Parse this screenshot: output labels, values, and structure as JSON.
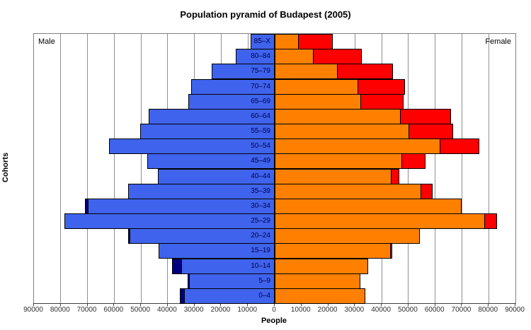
{
  "title": "Population pyramid of Budapest (2005)",
  "side_labels": {
    "left": "Male",
    "right": "Female"
  },
  "axes": {
    "xlabel": "People",
    "ylabel": "Cohorts",
    "x_max_each_side": 90000,
    "x_tick_step": 10000,
    "tick_labels": [
      "90000",
      "80000",
      "70000",
      "60000",
      "50000",
      "40000",
      "30000",
      "20000",
      "10000",
      "0",
      "10000",
      "20000",
      "30000",
      "40000",
      "50000",
      "60000",
      "70000",
      "80000",
      "90000"
    ]
  },
  "colors": {
    "male_bar": "#3F63EC",
    "male_surplus": "#000080",
    "female_bar": "#FF8000",
    "female_surplus": "#FF0000",
    "grid": "#909090",
    "plot_border": "#808080",
    "cohort_label_text": "#00004B"
  },
  "chart_data": {
    "type": "bar",
    "variant": "population-pyramid",
    "title": "Population pyramid of Budapest (2005)",
    "xlabel": "People",
    "ylabel": "Cohorts",
    "grid": true,
    "xlim_each_side": [
      0,
      90000
    ],
    "encoding_note": "Each side bar reaches min(male,female); navy tip = male surplus, red tip = female surplus",
    "categories": [
      "85–X",
      "80–84",
      "75–79",
      "70–74",
      "65–69",
      "60–64",
      "55–59",
      "50–54",
      "45–49",
      "40–44",
      "35–39",
      "30–34",
      "25–29",
      "20–24",
      "15–19",
      "10–14",
      "5–9",
      "0–4"
    ],
    "series": [
      {
        "name": "Male",
        "values": [
          9000,
          14600,
          23600,
          31200,
          32200,
          47000,
          50300,
          61900,
          47700,
          43800,
          54700,
          71200,
          78700,
          55000,
          43400,
          38700,
          32800,
          35700
        ]
      },
      {
        "name": "Female",
        "values": [
          21700,
          32500,
          44200,
          48600,
          48300,
          66000,
          66800,
          76500,
          56400,
          46500,
          59000,
          70000,
          83000,
          54200,
          44000,
          35000,
          32000,
          33900
        ]
      }
    ]
  }
}
